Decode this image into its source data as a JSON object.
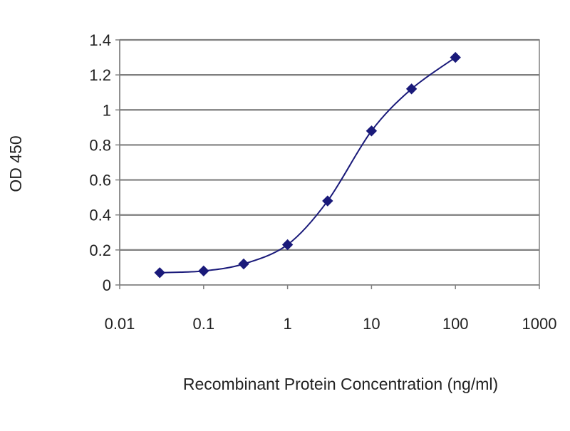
{
  "chart_data": {
    "type": "line",
    "xlabel": "Recombinant Protein Concentration (ng/ml)",
    "ylabel": "OD 450",
    "x_scale": "log",
    "xlim": [
      0.01,
      1000
    ],
    "ylim": [
      0,
      1.4
    ],
    "x_ticks": [
      "0.01",
      "0.1",
      "1",
      "10",
      "100",
      "1000"
    ],
    "y_ticks": [
      "0",
      "0.2",
      "0.4",
      "0.6",
      "0.8",
      "1",
      "1.2",
      "1.4"
    ],
    "grid": "horizontal",
    "legend": "none",
    "series": [
      {
        "x": [
          0.03,
          0.1,
          0.3,
          1,
          3,
          10,
          30,
          100
        ],
        "y": [
          0.07,
          0.08,
          0.12,
          0.23,
          0.48,
          0.88,
          1.12,
          1.3
        ],
        "marker": "diamond",
        "color": "#1a1a7a"
      }
    ],
    "colors": {
      "plot_background": "#ffffff",
      "gridline": "#7f7f7f",
      "axis": "#808080",
      "series": "#1a1a7a"
    }
  }
}
